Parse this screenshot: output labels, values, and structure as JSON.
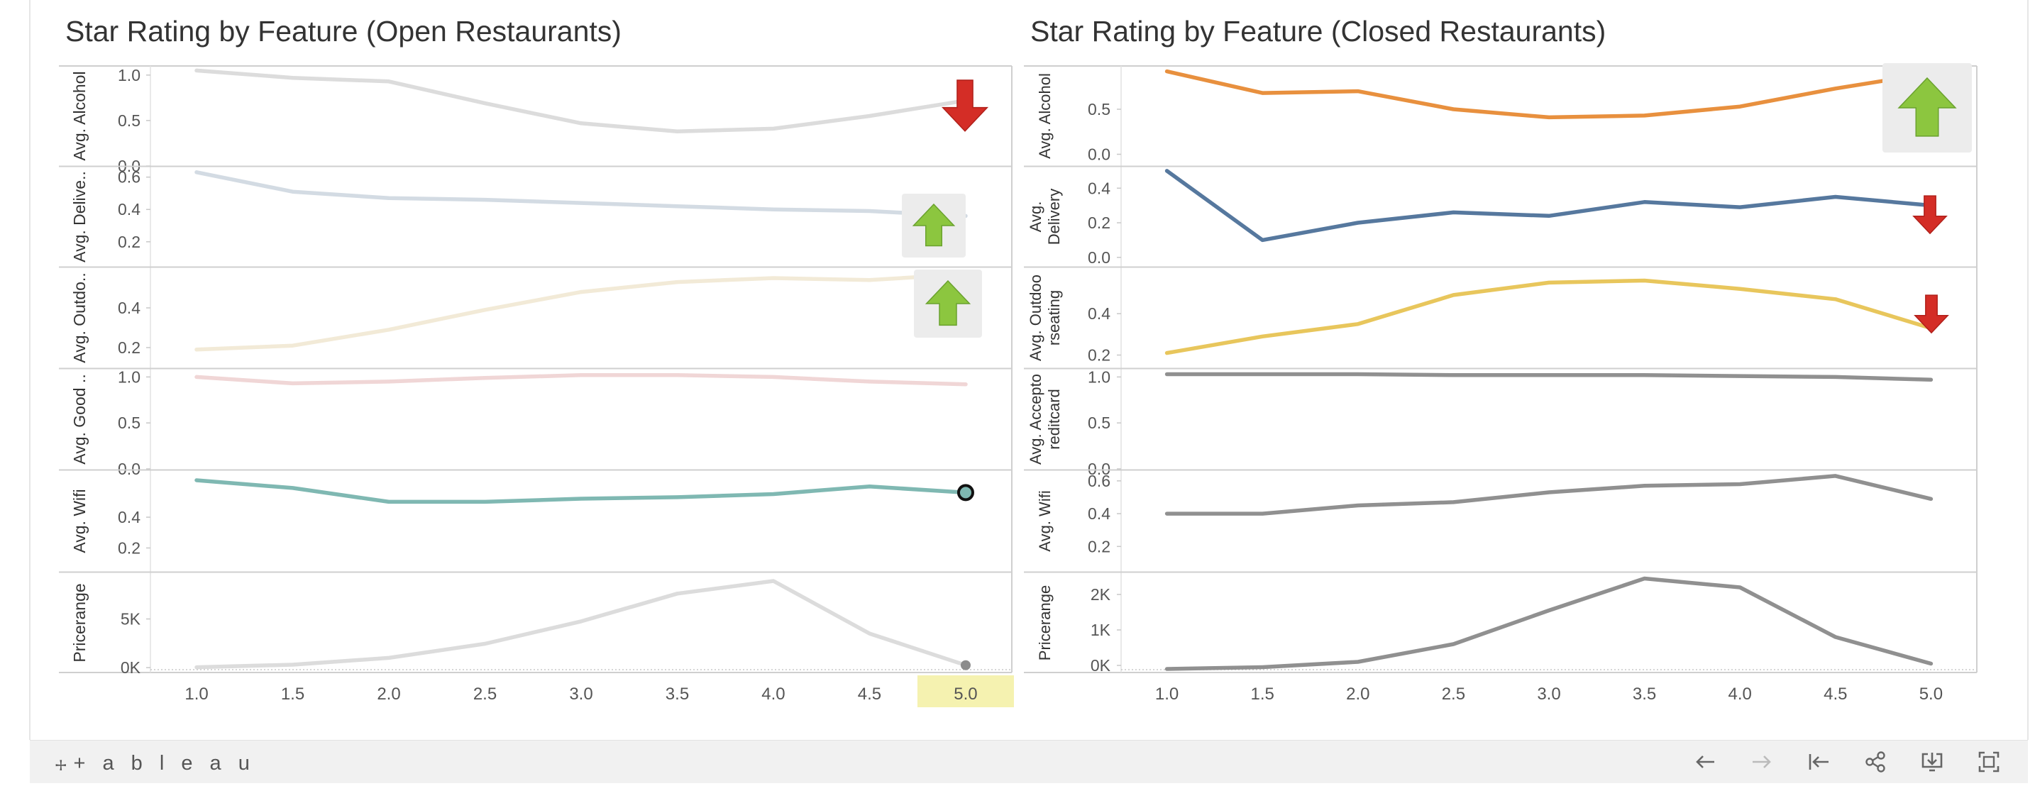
{
  "chart_data": [
    {
      "type": "line",
      "title": "Star Rating by Feature (Open Restaurants)",
      "x": [
        1.0,
        1.5,
        2.0,
        2.5,
        3.0,
        3.5,
        4.0,
        4.5,
        5.0
      ],
      "x_tick_labels": [
        "1.0",
        "1.5",
        "2.0",
        "2.5",
        "3.0",
        "3.5",
        "4.0",
        "4.5",
        "5.0"
      ],
      "highlighted_x": "5.0",
      "highlight_color": "#f5f2b0",
      "grid": false,
      "panels": [
        {
          "ylabel": "Avg. Alcohol",
          "ylim": [
            0,
            1.1
          ],
          "yticks": [
            0,
            0.5,
            1.0
          ],
          "tick_labels": [
            "0.0",
            "0.5",
            "1.0"
          ],
          "color": "#dcdcdc",
          "values": [
            1.05,
            0.97,
            0.93,
            0.69,
            0.47,
            0.38,
            0.41,
            0.55,
            0.72
          ],
          "indicator": "down-arrow-icon"
        },
        {
          "ylabel": "Avg. Delive..",
          "ylim": [
            0.05,
            0.66
          ],
          "yticks": [
            0.2,
            0.4,
            0.6
          ],
          "tick_labels": [
            "0.2",
            "0.4",
            "0.6"
          ],
          "color": "#d3dbe3",
          "values": [
            0.63,
            0.51,
            0.47,
            0.46,
            0.44,
            0.42,
            0.4,
            0.39,
            0.36
          ],
          "indicator": "up-arrow-icon"
        },
        {
          "ylabel": "Avg. Outdo..",
          "ylim": [
            0.1,
            0.6
          ],
          "yticks": [
            0.2,
            0.4
          ],
          "tick_labels": [
            "0.2",
            "0.4"
          ],
          "color": "#f2ead7",
          "values": [
            0.19,
            0.21,
            0.29,
            0.39,
            0.48,
            0.53,
            0.55,
            0.54,
            0.57
          ],
          "indicator": "up-arrow-icon"
        },
        {
          "ylabel": "Avg. Good ..",
          "ylim": [
            0,
            1.08
          ],
          "yticks": [
            0,
            0.5,
            1.0
          ],
          "tick_labels": [
            "0.0",
            "0.5",
            "1.0"
          ],
          "color": "#f0d6d6",
          "values": [
            1.0,
            0.93,
            0.95,
            0.99,
            1.02,
            1.02,
            1.0,
            0.95,
            0.92
          ],
          "indicator": ""
        },
        {
          "ylabel": "Avg. Wifi",
          "ylim": [
            0.05,
            0.7
          ],
          "yticks": [
            0.2,
            0.4
          ],
          "tick_labels": [
            "0.2",
            "0.4"
          ],
          "color": "#7fb8b2",
          "values": [
            0.64,
            0.59,
            0.5,
            0.5,
            0.52,
            0.53,
            0.55,
            0.6,
            0.56
          ],
          "indicator": "",
          "marked_point": "5.0"
        },
        {
          "ylabel": "Pricerange",
          "ylim": [
            -500,
            9700
          ],
          "yticks": [
            0,
            5000
          ],
          "tick_labels": [
            "0K",
            "5K"
          ],
          "color": "#dcdcdc",
          "values": [
            40,
            300,
            1000,
            2450,
            4750,
            7600,
            8900,
            3500,
            250
          ],
          "indicator": "",
          "marked_point": "5.0"
        }
      ]
    },
    {
      "type": "line",
      "title": "Star Rating by Feature (Closed Restaurants)",
      "x": [
        1.0,
        1.5,
        2.0,
        2.5,
        3.0,
        3.5,
        4.0,
        4.5,
        5.0
      ],
      "x_tick_labels": [
        "1.0",
        "1.5",
        "2.0",
        "2.5",
        "3.0",
        "3.5",
        "4.0",
        "4.5",
        "5.0"
      ],
      "grid": false,
      "panels": [
        {
          "ylabel": [
            "Avg. Alcohol"
          ],
          "ylim": [
            -0.13,
            0.98
          ],
          "yticks": [
            0,
            0.5
          ],
          "tick_labels": [
            "0.0",
            "0.5"
          ],
          "color": "#e8903e",
          "values": [
            0.92,
            0.68,
            0.7,
            0.5,
            0.41,
            0.43,
            0.53,
            0.73,
            0.9
          ],
          "indicator": "up-arrow-icon"
        },
        {
          "ylabel": [
            "Avg.",
            "Delivery"
          ],
          "ylim": [
            -0.05,
            0.52
          ],
          "yticks": [
            0,
            0.2,
            0.4
          ],
          "tick_labels": [
            "0.0",
            "0.2",
            "0.4"
          ],
          "color": "#56789e",
          "values": [
            0.5,
            0.1,
            0.2,
            0.26,
            0.24,
            0.32,
            0.29,
            0.35,
            0.3
          ],
          "indicator": "down-arrow-icon"
        },
        {
          "ylabel": [
            "Avg. Outdoo",
            "rseating"
          ],
          "ylim": [
            0.14,
            0.62
          ],
          "yticks": [
            0.2,
            0.4
          ],
          "tick_labels": [
            "0.2",
            "0.4"
          ],
          "color": "#e8c65c",
          "values": [
            0.21,
            0.29,
            0.35,
            0.49,
            0.55,
            0.56,
            0.52,
            0.47,
            0.33
          ],
          "indicator": "down-arrow-icon"
        },
        {
          "ylabel": [
            "Avg. Accepto",
            "reditcard"
          ],
          "ylim": [
            0,
            1.08
          ],
          "yticks": [
            0,
            0.5,
            1.0
          ],
          "tick_labels": [
            "0.0",
            "0.5",
            "1.0"
          ],
          "color": "#909090",
          "values": [
            1.03,
            1.03,
            1.03,
            1.02,
            1.02,
            1.02,
            1.01,
            1.0,
            0.97
          ],
          "indicator": ""
        },
        {
          "ylabel": [
            "Avg. Wifi"
          ],
          "ylim": [
            0.05,
            0.66
          ],
          "yticks": [
            0.2,
            0.4,
            0.6
          ],
          "tick_labels": [
            "0.2",
            "0.4",
            "0.6"
          ],
          "color": "#909090",
          "values": [
            0.4,
            0.4,
            0.45,
            0.47,
            0.53,
            0.57,
            0.58,
            0.63,
            0.49
          ],
          "indicator": ""
        },
        {
          "ylabel": [
            "Pricerange"
          ],
          "ylim": [
            -200,
            2600
          ],
          "yticks": [
            0,
            1000,
            2000
          ],
          "tick_labels": [
            "0K",
            "1K",
            "2K"
          ],
          "color": "#909090",
          "values": [
            -100,
            -50,
            100,
            600,
            1550,
            2450,
            2200,
            800,
            50
          ],
          "indicator": ""
        }
      ]
    }
  ],
  "toolbar": {
    "brand_mark": "⧾",
    "brand": "+ a b l e a u",
    "icons": [
      "undo-icon",
      "redo-icon",
      "revert-icon",
      "share-icon",
      "download-icon",
      "fullscreen-icon"
    ]
  }
}
